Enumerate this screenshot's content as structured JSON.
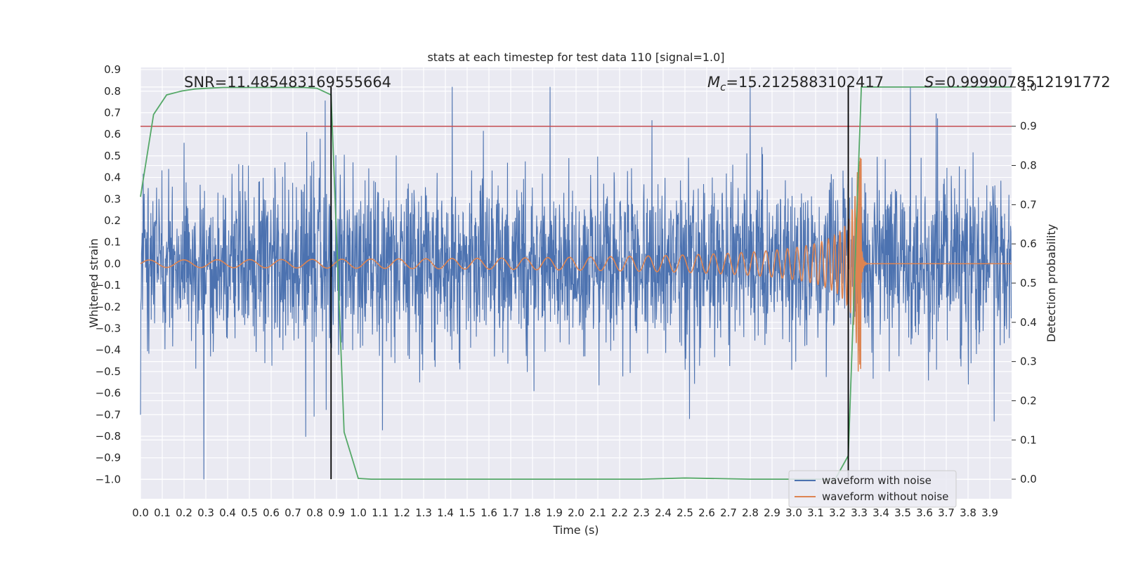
{
  "chart_data": {
    "type": "line",
    "title": "stats at each timestep for test data 110 [signal=1.0]",
    "xlabel": "Time (s)",
    "ylabel": "Whitened strain",
    "y2label": "Detection probability",
    "xlim": [
      0.0,
      4.0
    ],
    "ylim": [
      -1.09,
      0.91
    ],
    "y2lim": [
      -0.05,
      1.05
    ],
    "x_ticks": [
      "0.0",
      "0.1",
      "0.2",
      "0.3",
      "0.4",
      "0.5",
      "0.6",
      "0.7",
      "0.8",
      "0.9",
      "1.0",
      "1.1",
      "1.2",
      "1.3",
      "1.4",
      "1.5",
      "1.6",
      "1.7",
      "1.8",
      "1.9",
      "2.0",
      "2.1",
      "2.2",
      "2.3",
      "2.4",
      "2.5",
      "2.6",
      "2.7",
      "2.8",
      "2.9",
      "3.0",
      "3.1",
      "3.2",
      "3.3",
      "3.4",
      "3.5",
      "3.6",
      "3.7",
      "3.8",
      "3.9"
    ],
    "y_ticks": [
      "0.9",
      "0.8",
      "0.7",
      "0.6",
      "0.5",
      "0.4",
      "0.3",
      "0.2",
      "0.1",
      "0.0",
      "−0.1",
      "−0.2",
      "−0.3",
      "−0.4",
      "−0.5",
      "−0.6",
      "−0.7",
      "−0.8",
      "−0.9",
      "−1.0"
    ],
    "y2_ticks": [
      "1.0",
      "0.9",
      "0.8",
      "0.7",
      "0.6",
      "0.5",
      "0.4",
      "0.3",
      "0.2",
      "0.1",
      "0.0"
    ],
    "grid": true,
    "legend_position": "lower-right",
    "annotations": {
      "snr": "SNR=11.485483169555664",
      "mc_symbol": "M",
      "mc_sub": "c",
      "mc_value": "=15.2125883102417",
      "s_symbol": "S",
      "s_value": "=0.9999078512191772"
    },
    "vlines_x": [
      0.875,
      3.25
    ],
    "threshold_y2": 0.9,
    "series": [
      {
        "name": "waveform with noise",
        "color": "#4c72b0",
        "description": "whitened noisy strain, roughly ±0.4 with peaks to 0.8 and -1.0"
      },
      {
        "name": "waveform without noise",
        "color": "#dd8452",
        "description": "chirp signal, amplitude growing to ~0.5 at merger near 3.31 s, flat after"
      },
      {
        "name": "",
        "color": "#55a868",
        "axis": "y2",
        "x": [
          0.0,
          0.06,
          0.12,
          0.19,
          0.25,
          0.31,
          0.38,
          0.5,
          0.62,
          0.75,
          0.81,
          0.875,
          0.935,
          1.0,
          1.06,
          1.2,
          1.5,
          2.0,
          2.3,
          2.5,
          2.8,
          3.0,
          3.19,
          3.25,
          3.31,
          3.4,
          3.6,
          3.8,
          4.0
        ],
        "y": [
          0.72,
          0.93,
          0.98,
          0.99,
          0.995,
          0.997,
          0.999,
          0.999,
          0.999,
          0.999,
          0.997,
          0.98,
          0.12,
          0.002,
          0.0,
          0.0,
          0.0,
          0.0,
          0.0,
          0.003,
          0.0,
          0.0,
          0.0,
          0.06,
          1.0,
          1.0,
          1.0,
          1.0,
          1.0
        ]
      },
      {
        "name": "",
        "color": "#c44e52",
        "axis": "y2",
        "constant": 0.9
      }
    ]
  }
}
